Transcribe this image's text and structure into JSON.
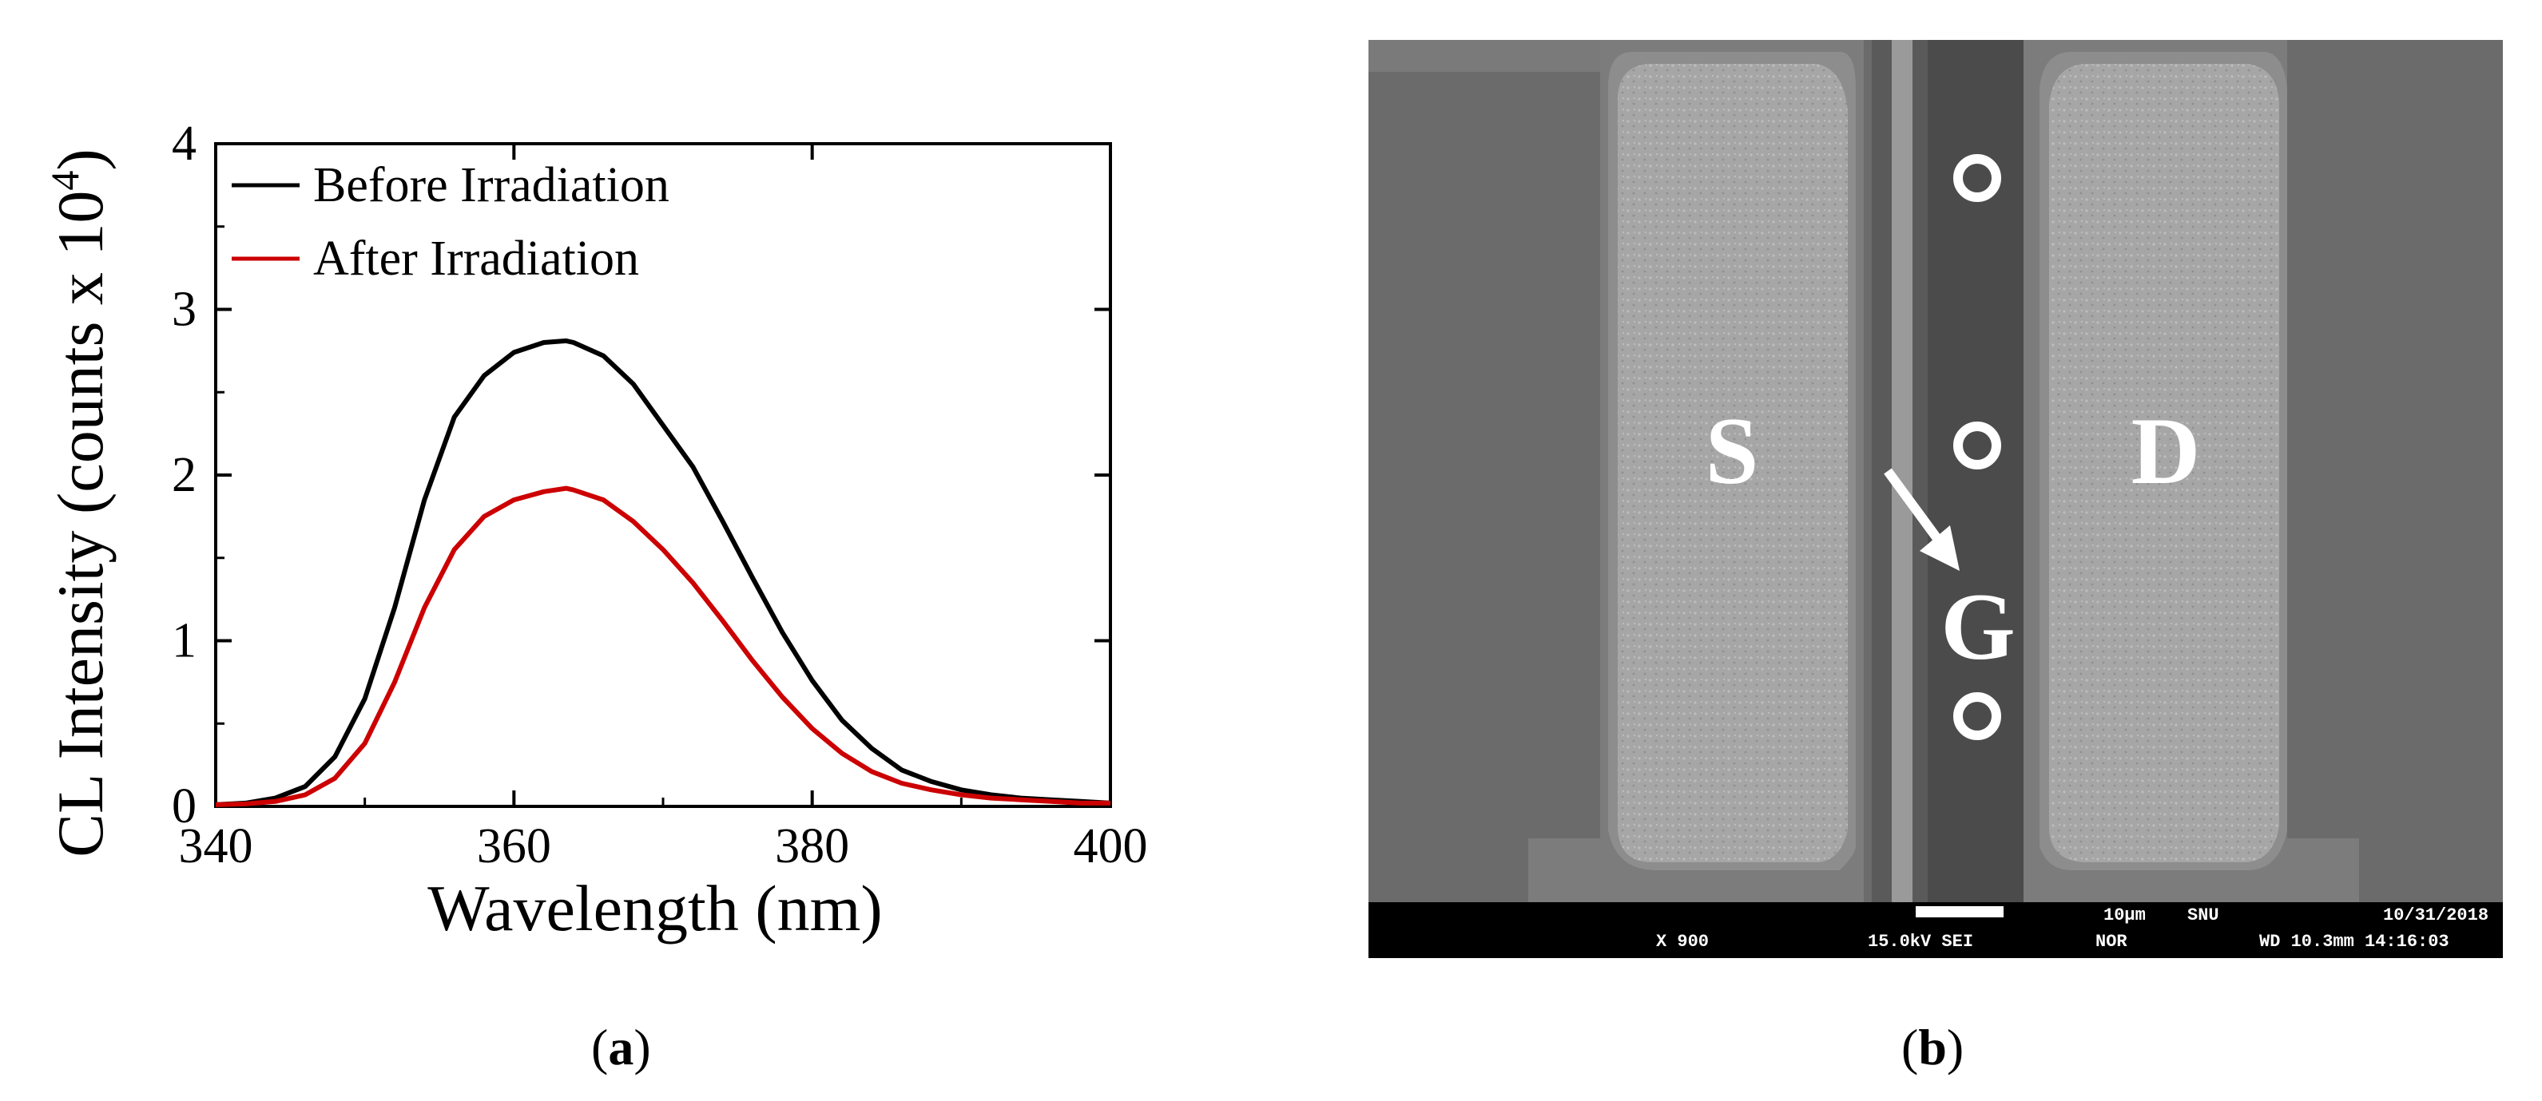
{
  "panels": {
    "a_label": "a",
    "b_label": "b"
  },
  "chart_data": {
    "type": "line",
    "xlabel": "Wavelength (nm)",
    "ylabel": "CL Intensity (counts x 10",
    "ylabel_exponent": "4",
    "ylabel_close": ")",
    "xlim": [
      340,
      400
    ],
    "ylim": [
      0,
      4
    ],
    "xticks": [
      340,
      360,
      380,
      400
    ],
    "yticks": [
      0,
      1,
      2,
      3,
      4
    ],
    "grid": false,
    "legend_position": "top-left",
    "x": [
      340,
      342,
      344,
      346,
      348,
      350,
      352,
      354,
      356,
      358,
      360,
      362,
      363.5,
      364,
      366,
      368,
      370,
      372,
      374,
      376,
      378,
      380,
      382,
      384,
      386,
      388,
      390,
      392,
      394,
      396,
      398,
      400
    ],
    "series": [
      {
        "name": "Before Irradiation",
        "color": "#000000",
        "values": [
          0.01,
          0.02,
          0.05,
          0.12,
          0.3,
          0.65,
          1.2,
          1.85,
          2.35,
          2.6,
          2.74,
          2.8,
          2.81,
          2.8,
          2.72,
          2.55,
          2.3,
          2.05,
          1.72,
          1.38,
          1.05,
          0.76,
          0.52,
          0.35,
          0.22,
          0.15,
          0.1,
          0.07,
          0.05,
          0.04,
          0.03,
          0.02
        ]
      },
      {
        "name": "After Irradiation",
        "color": "#cc0000",
        "values": [
          0.01,
          0.015,
          0.03,
          0.07,
          0.17,
          0.38,
          0.75,
          1.2,
          1.55,
          1.75,
          1.85,
          1.9,
          1.92,
          1.91,
          1.85,
          1.72,
          1.55,
          1.35,
          1.12,
          0.88,
          0.66,
          0.47,
          0.32,
          0.21,
          0.14,
          0.1,
          0.07,
          0.05,
          0.04,
          0.03,
          0.02,
          0.02
        ]
      }
    ]
  },
  "sem": {
    "labels": {
      "source": "S",
      "drain": "D",
      "gate": "G"
    },
    "info": {
      "scale": "10µm",
      "inst": "SNU",
      "date": "10/31/2018",
      "mag": "X 900",
      "kv": "15.0kV SEI",
      "mode": "NOR",
      "wd": "WD 10.3mm 14:16:03"
    },
    "colors": {
      "background": "#6e6e6e",
      "pad": "#a8a8a8",
      "channel": "#4a4a4a",
      "bar": "#000000"
    }
  }
}
